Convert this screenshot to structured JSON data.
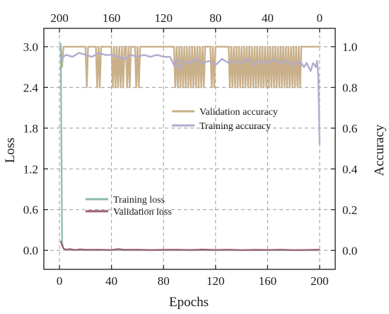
{
  "chart_data": {
    "type": "line",
    "xlabel": "Epochs",
    "ylabel_left": "Loss",
    "ylabel_right": "Accuracy",
    "x_ticks_bottom": [
      "0",
      "40",
      "80",
      "120",
      "160",
      "200"
    ],
    "x_ticks_top": [
      "200",
      "160",
      "120",
      "80",
      "40",
      "0"
    ],
    "y_ticks_left": [
      "0.0",
      "0.6",
      "1.2",
      "1.8",
      "2.4",
      "3.0"
    ],
    "y_ticks_right": [
      "0.0",
      "0.2",
      "0.4",
      "0.6",
      "0.8",
      "1.0"
    ],
    "xlim": [
      -12,
      212
    ],
    "ylim_left": [
      -0.28,
      3.27
    ],
    "ylim_right": [
      -0.093,
      1.09
    ],
    "grid": true,
    "legend_accuracy": "upper-right-center",
    "legend_loss": "lower-left",
    "series": [
      {
        "name": "Training loss",
        "axis": "left",
        "color": "#8bbab0",
        "x": [
          1,
          2,
          3,
          4,
          5,
          10,
          20,
          40,
          60,
          80,
          100,
          120,
          140,
          160,
          180,
          200
        ],
        "y": [
          3.05,
          0.12,
          0.03,
          0.01,
          0.005,
          0.004,
          0.003,
          0.003,
          0.002,
          0.003,
          0.002,
          0.002,
          0.002,
          0.002,
          0.002,
          0.002
        ]
      },
      {
        "name": "Validation loss",
        "axis": "left",
        "color": "#9e5c72",
        "x": [
          1,
          2,
          3,
          4,
          5,
          8,
          12,
          16,
          20,
          30,
          40,
          45,
          50,
          60,
          70,
          80,
          90,
          100,
          110,
          120,
          130,
          140,
          150,
          160,
          170,
          180,
          190,
          200
        ],
        "y": [
          0.14,
          0.07,
          0.03,
          0.02,
          0.01,
          0.02,
          0.005,
          0.015,
          0.008,
          0.01,
          0.005,
          0.02,
          0.008,
          0.01,
          0.005,
          0.008,
          0.01,
          0.005,
          0.012,
          0.006,
          0.01,
          0.004,
          0.008,
          0.006,
          0.01,
          0.004,
          0.006,
          0.01
        ]
      },
      {
        "name": "Validation accuracy",
        "axis": "right",
        "color": "#c9b08a",
        "x": [
          1,
          2,
          3,
          20,
          21,
          22,
          23,
          24,
          28,
          29,
          30,
          31,
          32,
          40,
          41,
          42,
          43,
          44,
          45,
          46,
          47,
          48,
          49,
          50,
          51,
          52,
          53,
          54,
          55,
          58,
          59,
          60,
          61,
          62,
          88,
          89,
          90,
          91,
          92,
          93,
          94,
          95,
          96,
          97,
          98,
          99,
          100,
          101,
          102,
          103,
          104,
          105,
          106,
          107,
          108,
          109,
          110,
          111,
          112,
          113,
          116,
          117,
          118,
          119,
          120,
          130,
          131,
          132,
          133,
          134,
          135,
          136,
          137,
          138,
          139,
          140,
          141,
          142,
          143,
          144,
          145,
          146,
          147,
          148,
          149,
          150,
          151,
          152,
          153,
          154,
          155,
          156,
          157,
          158,
          159,
          160,
          161,
          162,
          163,
          164,
          165,
          166,
          167,
          168,
          169,
          170,
          171,
          172,
          173,
          174,
          175,
          176,
          177,
          178,
          179,
          180,
          181,
          182,
          183,
          184,
          185,
          186,
          187,
          200
        ],
        "y": [
          1.0,
          0.9,
          1.0,
          1.0,
          0.8,
          1.0,
          1.0,
          1.0,
          1.0,
          0.8,
          1.0,
          0.8,
          1.0,
          1.0,
          0.8,
          1.0,
          0.8,
          1.0,
          0.8,
          1.0,
          0.8,
          1.0,
          0.8,
          1.0,
          1.0,
          0.8,
          1.0,
          0.8,
          1.0,
          1.0,
          0.8,
          1.0,
          0.8,
          1.0,
          1.0,
          0.8,
          1.0,
          0.8,
          1.0,
          0.8,
          1.0,
          0.8,
          1.0,
          0.8,
          1.0,
          0.8,
          1.0,
          0.8,
          1.0,
          0.8,
          1.0,
          0.8,
          1.0,
          0.8,
          1.0,
          0.8,
          1.0,
          0.8,
          1.0,
          1.0,
          1.0,
          0.8,
          1.0,
          0.8,
          1.0,
          1.0,
          0.8,
          1.0,
          0.8,
          1.0,
          0.8,
          1.0,
          0.8,
          1.0,
          0.8,
          1.0,
          0.8,
          1.0,
          0.8,
          1.0,
          0.8,
          1.0,
          0.8,
          1.0,
          0.8,
          1.0,
          0.8,
          1.0,
          0.8,
          1.0,
          0.8,
          1.0,
          0.8,
          1.0,
          0.8,
          1.0,
          0.8,
          1.0,
          0.8,
          1.0,
          0.8,
          1.0,
          0.8,
          1.0,
          0.8,
          1.0,
          0.8,
          1.0,
          0.8,
          1.0,
          0.8,
          1.0,
          0.8,
          1.0,
          0.8,
          1.0,
          0.8,
          1.0,
          0.8,
          1.0,
          0.8,
          1.0,
          1.0,
          1.0
        ]
      },
      {
        "name": "Training accuracy",
        "axis": "right",
        "color": "#b1abcd",
        "x": [
          1,
          2,
          3,
          5,
          10,
          15,
          20,
          25,
          30,
          35,
          40,
          45,
          50,
          55,
          60,
          65,
          70,
          75,
          80,
          85,
          88,
          90,
          92,
          95,
          100,
          105,
          110,
          115,
          120,
          125,
          130,
          135,
          140,
          145,
          150,
          155,
          160,
          165,
          170,
          175,
          180,
          185,
          188,
          190,
          193,
          195,
          197,
          198,
          199,
          200
        ],
        "y": [
          0.98,
          0.93,
          0.95,
          0.96,
          0.95,
          0.97,
          0.96,
          0.95,
          0.97,
          0.96,
          0.96,
          0.95,
          0.94,
          0.96,
          0.95,
          0.96,
          0.95,
          0.96,
          0.95,
          0.95,
          0.91,
          0.94,
          0.89,
          0.93,
          0.92,
          0.94,
          0.92,
          0.93,
          0.91,
          0.94,
          0.92,
          0.93,
          0.92,
          0.94,
          0.91,
          0.93,
          0.92,
          0.94,
          0.92,
          0.93,
          0.91,
          0.93,
          0.9,
          0.92,
          0.88,
          0.92,
          0.9,
          0.93,
          0.85,
          0.52
        ]
      }
    ]
  }
}
